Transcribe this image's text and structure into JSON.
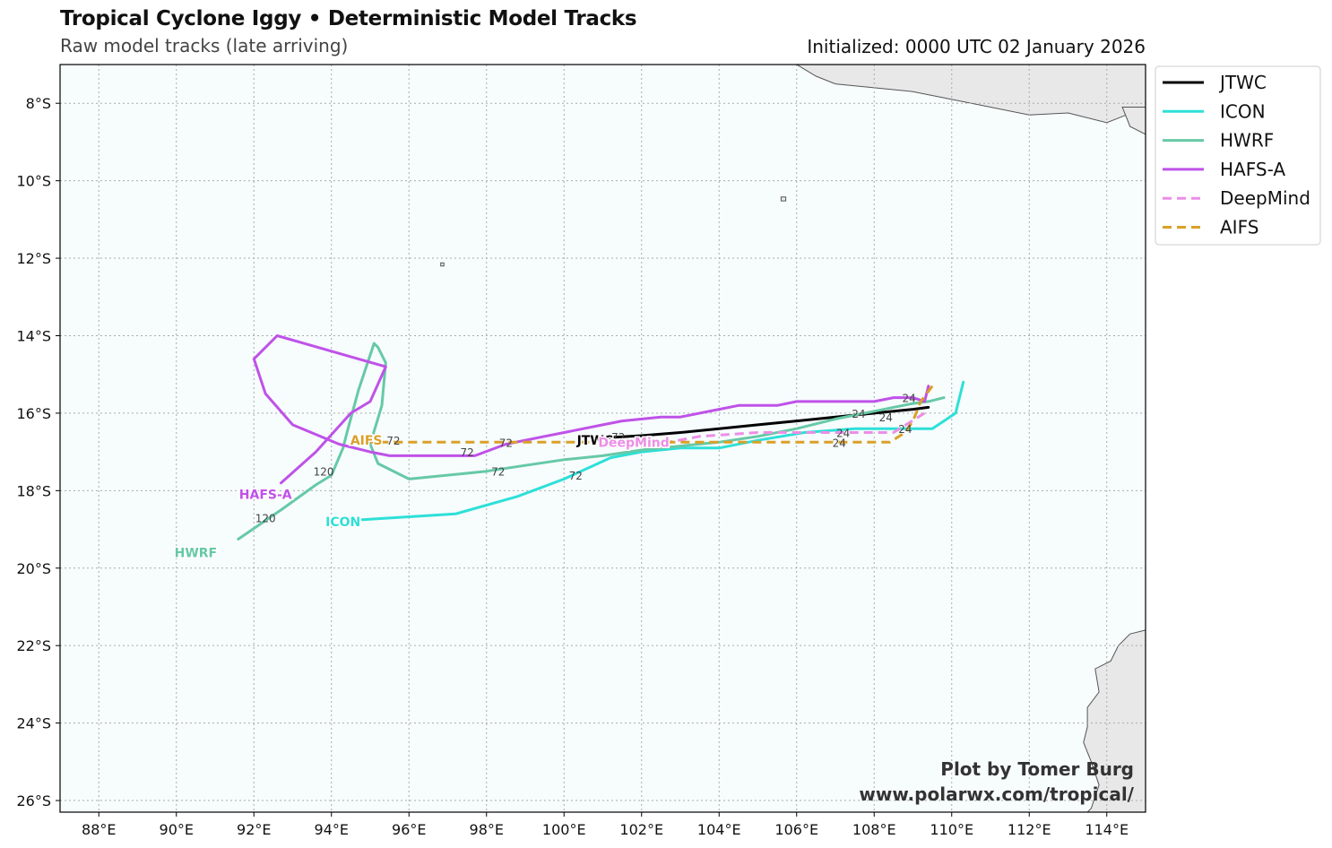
{
  "header": {
    "title": "Tropical Cyclone Iggy • Deterministic Model Tracks",
    "subtitle": "Raw model tracks (late arriving)",
    "initialized": "Initialized: 0000 UTC 02 January 2026"
  },
  "credit": {
    "line1": "Plot by Tomer Burg",
    "line2": "www.polarwx.com/tropical/"
  },
  "map": {
    "lon_range": [
      87,
      115
    ],
    "lat_range": [
      -26.3,
      -7.0
    ],
    "ocean_color": "#f7fcfd",
    "land_color": "#e8e8e8",
    "grid_color": "#aaaaaa",
    "x_ticks": [
      "88°E",
      "90°E",
      "92°E",
      "94°E",
      "96°E",
      "98°E",
      "100°E",
      "102°E",
      "104°E",
      "106°E",
      "108°E",
      "110°E",
      "112°E",
      "114°E"
    ],
    "y_ticks": [
      "8°S",
      "10°S",
      "12°S",
      "14°S",
      "16°S",
      "18°S",
      "20°S",
      "22°S",
      "24°S",
      "26°S"
    ],
    "x_tick_values": [
      88,
      90,
      92,
      94,
      96,
      98,
      100,
      102,
      104,
      106,
      108,
      110,
      112,
      114
    ],
    "y_tick_values": [
      -8,
      -10,
      -12,
      -14,
      -16,
      -18,
      -20,
      -22,
      -24,
      -26
    ]
  },
  "legend": [
    {
      "name": "JTWC",
      "color": "#000000",
      "dashed": false
    },
    {
      "name": "ICON",
      "color": "#2de0d8",
      "dashed": false
    },
    {
      "name": "HWRF",
      "color": "#66c9a6",
      "dashed": false
    },
    {
      "name": "HAFS-A",
      "color": "#bf52e8",
      "dashed": false
    },
    {
      "name": "DeepMind",
      "color": "#ec8ee6",
      "dashed": true
    },
    {
      "name": "AIFS",
      "color": "#daa028",
      "dashed": true
    }
  ],
  "chart_data": {
    "type": "map-tracks",
    "tracks": [
      {
        "name": "JTWC",
        "color": "#000000",
        "dashed": false,
        "points": [
          [
            109.4,
            -15.85
          ],
          [
            109.0,
            -15.9
          ],
          [
            108.0,
            -16.0
          ],
          [
            107.0,
            -16.1
          ],
          [
            106.0,
            -16.2
          ],
          [
            105.0,
            -16.3
          ],
          [
            104.0,
            -16.4
          ],
          [
            103.0,
            -16.5
          ],
          [
            102.0,
            -16.58
          ],
          [
            100.8,
            -16.65
          ]
        ],
        "label": {
          "text": "JTWC",
          "lon": 100.8,
          "lat": -16.7
        },
        "hours": [
          {
            "text": "24",
            "lon": 108.3,
            "lat": -16.1
          },
          {
            "text": "72",
            "lon": 101.4,
            "lat": -16.6
          }
        ]
      },
      {
        "name": "ICON",
        "color": "#2de0d8",
        "dashed": false,
        "points": [
          [
            110.3,
            -15.2
          ],
          [
            110.1,
            -16.0
          ],
          [
            109.8,
            -16.2
          ],
          [
            109.5,
            -16.4
          ],
          [
            109.0,
            -16.4
          ],
          [
            108.5,
            -16.4
          ],
          [
            107.5,
            -16.4
          ],
          [
            106.2,
            -16.5
          ],
          [
            105.0,
            -16.7
          ],
          [
            104.0,
            -16.9
          ],
          [
            103.0,
            -16.9
          ],
          [
            102.0,
            -17.0
          ],
          [
            101.2,
            -17.15
          ],
          [
            100.0,
            -17.7
          ],
          [
            98.8,
            -18.15
          ],
          [
            97.2,
            -18.6
          ],
          [
            94.8,
            -18.75
          ]
        ],
        "label": {
          "text": "ICON",
          "lon": 94.3,
          "lat": -18.8
        },
        "hours": [
          {
            "text": "24",
            "lon": 108.8,
            "lat": -16.4
          },
          {
            "text": "72",
            "lon": 100.3,
            "lat": -17.6
          }
        ]
      },
      {
        "name": "HWRF",
        "color": "#66c9a6",
        "dashed": false,
        "points": [
          [
            109.8,
            -15.6
          ],
          [
            109.4,
            -15.7
          ],
          [
            109.0,
            -15.75
          ],
          [
            108.0,
            -15.95
          ],
          [
            107.0,
            -16.15
          ],
          [
            106.0,
            -16.4
          ],
          [
            105.0,
            -16.6
          ],
          [
            104.0,
            -16.75
          ],
          [
            103.0,
            -16.85
          ],
          [
            102.0,
            -16.95
          ],
          [
            101.0,
            -17.1
          ],
          [
            100.0,
            -17.2
          ],
          [
            99.0,
            -17.35
          ],
          [
            98.0,
            -17.5
          ],
          [
            96.0,
            -17.7
          ],
          [
            95.2,
            -17.3
          ],
          [
            95.0,
            -16.8
          ],
          [
            95.3,
            -15.8
          ],
          [
            95.4,
            -14.7
          ],
          [
            95.2,
            -14.3
          ],
          [
            95.1,
            -14.2
          ],
          [
            94.7,
            -15.4
          ],
          [
            94.4,
            -16.5
          ],
          [
            94.3,
            -16.9
          ],
          [
            94.0,
            -17.6
          ],
          [
            93.6,
            -17.85
          ],
          [
            92.7,
            -18.5
          ],
          [
            91.6,
            -19.25
          ]
        ],
        "label": {
          "text": "HWRF",
          "lon": 90.5,
          "lat": -19.6
        },
        "hours": [
          {
            "text": "24",
            "lon": 107.6,
            "lat": -16.0
          },
          {
            "text": "72",
            "lon": 98.3,
            "lat": -17.5
          },
          {
            "text": "120",
            "lon": 92.3,
            "lat": -18.7
          }
        ]
      },
      {
        "name": "HAFS-A",
        "color": "#bf52e8",
        "dashed": false,
        "points": [
          [
            109.4,
            -15.3
          ],
          [
            109.3,
            -15.7
          ],
          [
            109.0,
            -15.6
          ],
          [
            108.5,
            -15.6
          ],
          [
            108.0,
            -15.7
          ],
          [
            107.0,
            -15.7
          ],
          [
            106.0,
            -15.7
          ],
          [
            105.5,
            -15.8
          ],
          [
            104.5,
            -15.8
          ],
          [
            104.0,
            -15.9
          ],
          [
            103.0,
            -16.1
          ],
          [
            102.5,
            -16.1
          ],
          [
            101.5,
            -16.2
          ],
          [
            101.0,
            -16.3
          ],
          [
            100.5,
            -16.4
          ],
          [
            99.5,
            -16.6
          ],
          [
            98.5,
            -16.8
          ],
          [
            97.7,
            -17.1
          ],
          [
            96.5,
            -17.1
          ],
          [
            95.5,
            -17.1
          ],
          [
            95.0,
            -17.0
          ],
          [
            94.2,
            -16.8
          ],
          [
            93.0,
            -16.3
          ],
          [
            92.3,
            -15.5
          ],
          [
            92.0,
            -14.6
          ],
          [
            92.6,
            -14.0
          ],
          [
            94.0,
            -14.4
          ],
          [
            95.4,
            -14.8
          ],
          [
            95.0,
            -15.7
          ],
          [
            94.5,
            -16.0
          ],
          [
            93.6,
            -17.0
          ],
          [
            92.7,
            -17.8
          ]
        ],
        "label": {
          "text": "HAFS-A",
          "lon": 92.3,
          "lat": -18.1
        },
        "hours": [
          {
            "text": "24",
            "lon": 108.9,
            "lat": -15.6
          },
          {
            "text": "72",
            "lon": 97.5,
            "lat": -17.0
          },
          {
            "text": "120",
            "lon": 93.8,
            "lat": -17.5
          }
        ]
      },
      {
        "name": "DeepMind",
        "color": "#ec8ee6",
        "dashed": true,
        "points": [
          [
            109.3,
            -16.0
          ],
          [
            108.5,
            -16.5
          ],
          [
            107.5,
            -16.5
          ],
          [
            106.5,
            -16.5
          ],
          [
            105.0,
            -16.5
          ],
          [
            103.5,
            -16.6
          ],
          [
            102.7,
            -16.75
          ]
        ],
        "label": {
          "text": "DeepMind",
          "lon": 101.8,
          "lat": -16.75
        },
        "hours": [
          {
            "text": "24",
            "lon": 107.2,
            "lat": -16.5
          }
        ]
      },
      {
        "name": "AIFS",
        "color": "#daa028",
        "dashed": true,
        "points": [
          [
            109.5,
            -15.3
          ],
          [
            109.2,
            -15.7
          ],
          [
            109.0,
            -16.2
          ],
          [
            108.8,
            -16.5
          ],
          [
            108.4,
            -16.75
          ],
          [
            107.5,
            -16.75
          ],
          [
            106.0,
            -16.75
          ],
          [
            104.0,
            -16.75
          ],
          [
            102.0,
            -16.75
          ],
          [
            100.0,
            -16.75
          ],
          [
            98.0,
            -16.75
          ],
          [
            96.0,
            -16.75
          ],
          [
            95.0,
            -16.75
          ]
        ],
        "label": {
          "text": "AIFS",
          "lon": 94.9,
          "lat": -16.7
        },
        "hours": [
          {
            "text": "24",
            "lon": 107.1,
            "lat": -16.75
          },
          {
            "text": "72",
            "lon": 95.6,
            "lat": -16.7
          },
          {
            "text": "72",
            "lon": 98.5,
            "lat": -16.75
          }
        ]
      }
    ]
  },
  "land": {
    "java": [
      [
        107.5,
        -7.0
      ],
      [
        115.0,
        -7.0
      ],
      [
        115.0,
        -8.3
      ],
      [
        114.5,
        -8.3
      ],
      [
        114.0,
        -8.5
      ],
      [
        113.0,
        -8.25
      ],
      [
        112.0,
        -8.3
      ],
      [
        111.0,
        -8.1
      ],
      [
        110.0,
        -7.9
      ],
      [
        109.0,
        -7.7
      ],
      [
        108.0,
        -7.6
      ],
      [
        107.0,
        -7.5
      ],
      [
        106.5,
        -7.3
      ],
      [
        106.0,
        -7.0
      ]
    ],
    "bali": [
      [
        114.4,
        -8.1
      ],
      [
        115.0,
        -8.1
      ],
      [
        115.0,
        -8.8
      ],
      [
        114.6,
        -8.6
      ]
    ],
    "australia": [
      [
        115.0,
        -21.6
      ],
      [
        114.6,
        -21.7
      ],
      [
        114.3,
        -22.0
      ],
      [
        114.1,
        -22.4
      ],
      [
        113.7,
        -22.6
      ],
      [
        113.8,
        -23.2
      ],
      [
        113.5,
        -23.6
      ],
      [
        113.5,
        -24.1
      ],
      [
        113.4,
        -24.5
      ],
      [
        113.6,
        -25.0
      ],
      [
        113.8,
        -25.6
      ],
      [
        113.6,
        -26.2
      ],
      [
        113.5,
        -26.3
      ],
      [
        115.0,
        -26.3
      ]
    ],
    "christmas_island": [
      [
        105.6,
        -10.42
      ],
      [
        105.72,
        -10.42
      ],
      [
        105.72,
        -10.52
      ],
      [
        105.6,
        -10.52
      ]
    ],
    "cocos": [
      [
        96.82,
        -12.12
      ],
      [
        96.9,
        -12.12
      ],
      [
        96.9,
        -12.2
      ],
      [
        96.82,
        -12.2
      ]
    ]
  }
}
